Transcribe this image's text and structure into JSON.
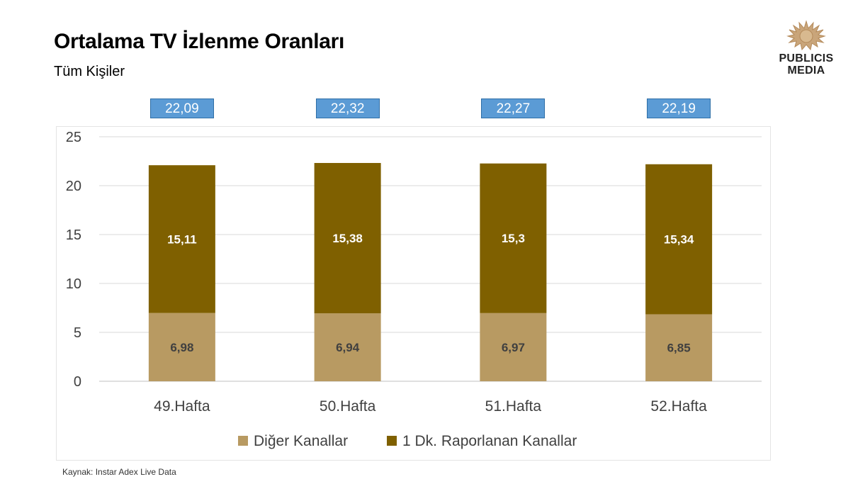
{
  "title": "Ortalama TV İzlenme Oranları",
  "subtitle": "Tüm Kişiler",
  "logo": {
    "line1": "PUBLICIS",
    "line2": "MEDIA"
  },
  "source": "Kaynak: Instar  Adex Live Data",
  "colors": {
    "diger": "#b89a62",
    "dk": "#7f6000",
    "total_box": "#5b9bd5"
  },
  "chart_data": {
    "type": "bar",
    "stacked": true,
    "categories": [
      "49.Hafta",
      "50.Hafta",
      "51.Hafta",
      "52.Hafta"
    ],
    "series": [
      {
        "name": "Diğer Kanallar",
        "values": [
          6.98,
          6.94,
          6.97,
          6.85
        ],
        "labels": [
          "6,98",
          "6,94",
          "6,97",
          "6,85"
        ]
      },
      {
        "name": "1 Dk. Raporlanan Kanallar",
        "values": [
          15.11,
          15.38,
          15.3,
          15.34
        ],
        "labels": [
          "15,11",
          "15,38",
          "15,3",
          "15,34"
        ]
      }
    ],
    "totals": [
      "22,09",
      "22,32",
      "22,27",
      "22,19"
    ],
    "yticks": [
      "0",
      "5",
      "10",
      "15",
      "20",
      "25"
    ],
    "ylim": [
      0,
      25
    ],
    "grid": true,
    "legend": "bottom"
  }
}
